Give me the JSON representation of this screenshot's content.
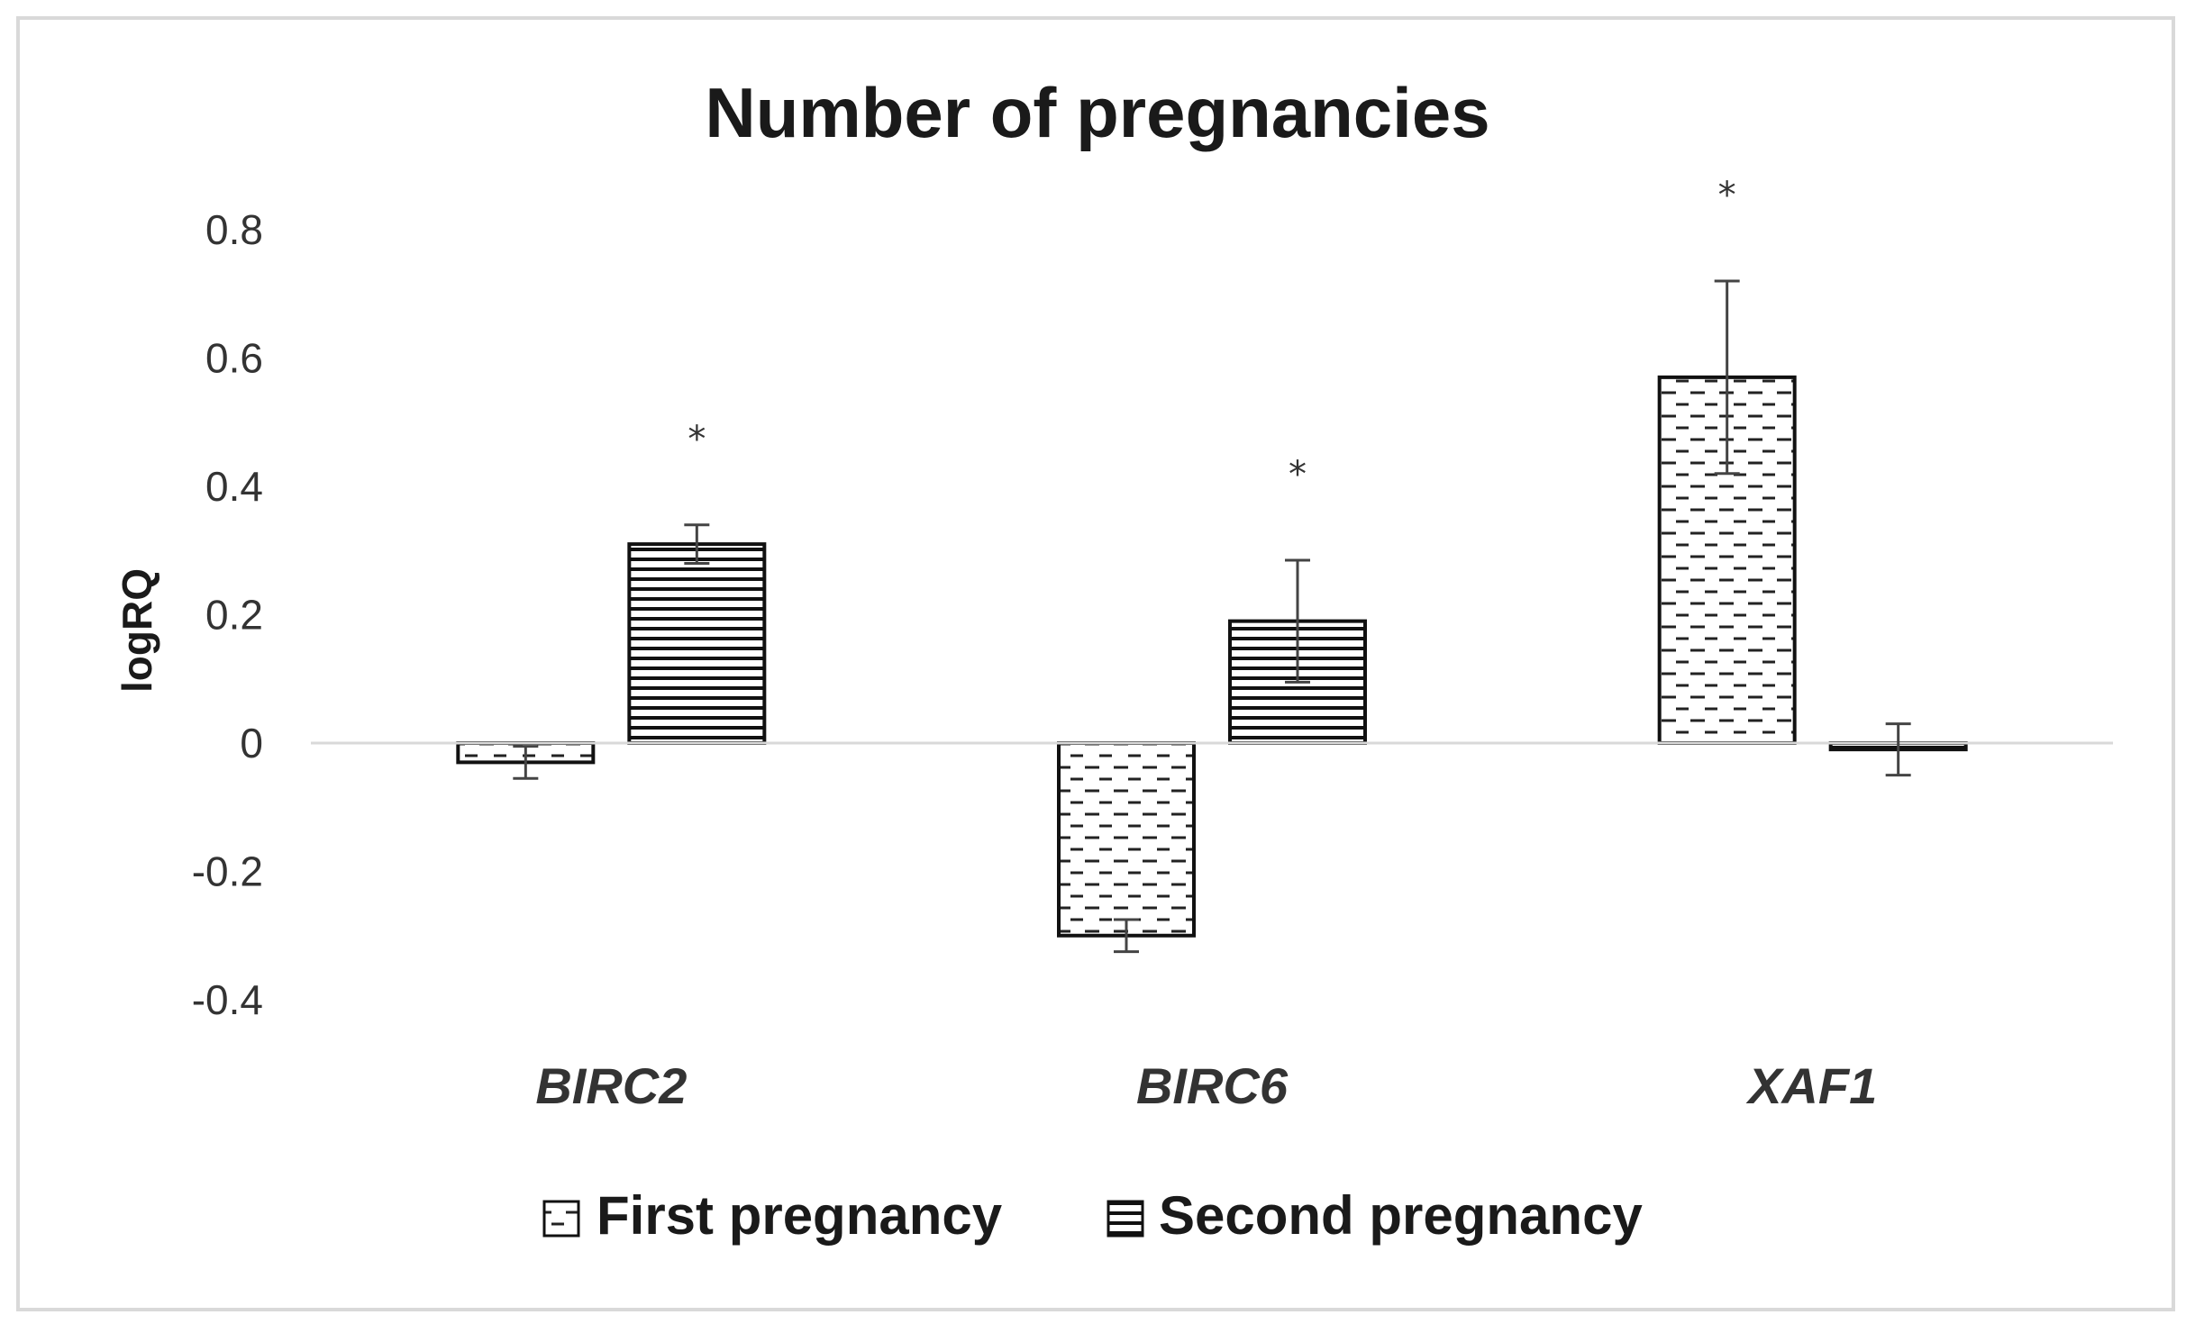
{
  "chart_data": {
    "type": "bar",
    "title": "Number of pregnancies",
    "ylabel": "logRQ",
    "xlabel": "",
    "ylim": [
      -0.4,
      0.8
    ],
    "yticks": [
      "0.8",
      "0.6",
      "0.4",
      "0.2",
      "0",
      "-0.2",
      "-0.4"
    ],
    "ytick_values": [
      0.8,
      0.6,
      0.4,
      0.2,
      0,
      -0.2,
      -0.4
    ],
    "categories": [
      "BIRC2",
      "BIRC6",
      "XAF1"
    ],
    "series": [
      {
        "name": "First pregnancy",
        "pattern": "dashed-dots",
        "values": [
          -0.03,
          -0.3,
          0.57
        ],
        "errors": [
          0.025,
          0.025,
          0.15
        ],
        "significant": [
          false,
          false,
          true
        ]
      },
      {
        "name": "Second pregnancy",
        "pattern": "horizontal-lines",
        "values": [
          0.31,
          0.19,
          -0.01
        ],
        "errors": [
          0.03,
          0.095,
          0.04
        ],
        "significant": [
          true,
          true,
          false
        ]
      }
    ],
    "significance_marker": "*",
    "grid": false,
    "legend_position": "bottom",
    "colors": {
      "bar_stroke": "#111111",
      "bar_fill": "#ffffff",
      "axis": "#d9d9d9",
      "text": "#333333"
    }
  }
}
